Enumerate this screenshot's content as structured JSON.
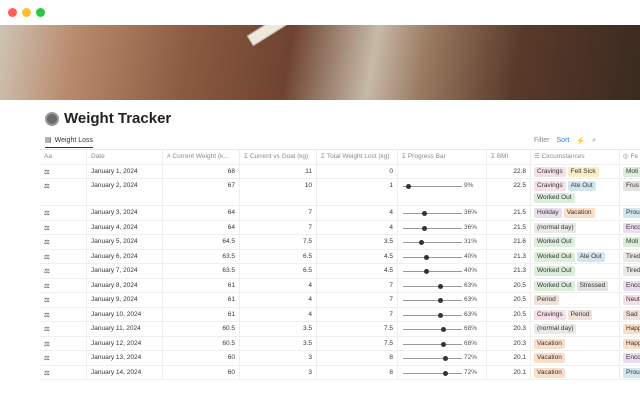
{
  "window": {
    "controls": [
      "#ff5f57",
      "#febc2e",
      "#28c840"
    ]
  },
  "page": {
    "title": "Weight Tracker",
    "icon": "scale-icon"
  },
  "view": {
    "tab": "Weight Loss",
    "filter": "Filter",
    "sort": "Sort",
    "accent": "#2383e2"
  },
  "columns": [
    "Aa",
    "Date",
    "# Current Weight (k...",
    "Σ Current vs Goal (kg)",
    "Σ Total Weight Lost (kg)",
    "Σ Progress Bar",
    "Σ BMI",
    "☰ Circumstances",
    "◎ Fe"
  ],
  "tag_colors": {
    "Cravings": "#f5e0e9",
    "Felt Sick": "#fdecc8",
    "Ate Out": "#d3e5ef",
    "Worked Out": "#dbeddb",
    "Holiday": "#e8deee",
    "Vacation": "#fadec9",
    "(normal day)": "#e9e9e7",
    "Stressed": "#e3e2e0",
    "Period": "#eee0da",
    "Moti": "#dbeddb",
    "Frus": "#e3e2e0",
    "Prou": "#d3e5ef",
    "Enco": "#e8deee",
    "Tired": "#e9e9e7",
    "Neut": "#f5e0e9",
    "Sad": "#eee0da",
    "Happ": "#fadec9"
  },
  "rows": [
    {
      "date": "January 1, 2024",
      "cw": "68",
      "cvg": "11",
      "lost": "0",
      "progress": null,
      "pct": "",
      "bmi": "22.8",
      "tags": [
        "Cravings",
        "Felt Sick"
      ],
      "feel": "Moti"
    },
    {
      "date": "January 2, 2024",
      "cw": "67",
      "cvg": "10",
      "lost": "1",
      "progress": 9,
      "pct": "9%",
      "bmi": "22.5",
      "tags": [
        "Cravings",
        "Ate Out",
        "Worked Out"
      ],
      "feel": "Frus"
    },
    {
      "date": "January 3, 2024",
      "cw": "64",
      "cvg": "7",
      "lost": "4",
      "progress": 36,
      "pct": "36%",
      "bmi": "21.5",
      "tags": [
        "Holiday",
        "Vacation"
      ],
      "feel": "Prou"
    },
    {
      "date": "January 4, 2024",
      "cw": "64",
      "cvg": "7",
      "lost": "4",
      "progress": 36,
      "pct": "36%",
      "bmi": "21.5",
      "tags": [
        "(normal day)"
      ],
      "feel": "Enco"
    },
    {
      "date": "January 5, 2024",
      "cw": "64.5",
      "cvg": "7.5",
      "lost": "3.5",
      "progress": 31,
      "pct": "31%",
      "bmi": "21.6",
      "tags": [
        "Worked Out"
      ],
      "feel": "Moti"
    },
    {
      "date": "January 6, 2024",
      "cw": "63.5",
      "cvg": "6.5",
      "lost": "4.5",
      "progress": 40,
      "pct": "40%",
      "bmi": "21.3",
      "tags": [
        "Worked Out",
        "Ate Out"
      ],
      "feel": "Tired"
    },
    {
      "date": "January 7, 2024",
      "cw": "63.5",
      "cvg": "6.5",
      "lost": "4.5",
      "progress": 40,
      "pct": "40%",
      "bmi": "21.3",
      "tags": [
        "Worked Out"
      ],
      "feel": "Tired"
    },
    {
      "date": "January 8, 2024",
      "cw": "61",
      "cvg": "4",
      "lost": "7",
      "progress": 63,
      "pct": "63%",
      "bmi": "20.5",
      "tags": [
        "Worked Out",
        "Stressed"
      ],
      "feel": "Enco"
    },
    {
      "date": "January 9, 2024",
      "cw": "61",
      "cvg": "4",
      "lost": "7",
      "progress": 63,
      "pct": "63%",
      "bmi": "20.5",
      "tags": [
        "Period"
      ],
      "feel": "Neut"
    },
    {
      "date": "January 10, 2024",
      "cw": "61",
      "cvg": "4",
      "lost": "7",
      "progress": 63,
      "pct": "63%",
      "bmi": "20.5",
      "tags": [
        "Cravings",
        "Period"
      ],
      "feel": "Sad"
    },
    {
      "date": "January 11, 2024",
      "cw": "60.5",
      "cvg": "3.5",
      "lost": "7.5",
      "progress": 68,
      "pct": "68%",
      "bmi": "20.3",
      "tags": [
        "(normal day)"
      ],
      "feel": "Happ"
    },
    {
      "date": "January 12, 2024",
      "cw": "60.5",
      "cvg": "3.5",
      "lost": "7.5",
      "progress": 68,
      "pct": "68%",
      "bmi": "20.3",
      "tags": [
        "Vacation"
      ],
      "feel": "Happ"
    },
    {
      "date": "January 13, 2024",
      "cw": "60",
      "cvg": "3",
      "lost": "8",
      "progress": 72,
      "pct": "72%",
      "bmi": "20.1",
      "tags": [
        "Vacation"
      ],
      "feel": "Enco"
    },
    {
      "date": "January 14, 2024",
      "cw": "60",
      "cvg": "3",
      "lost": "8",
      "progress": 72,
      "pct": "72%",
      "bmi": "20.1",
      "tags": [
        "Vacation"
      ],
      "feel": "Prou"
    }
  ]
}
